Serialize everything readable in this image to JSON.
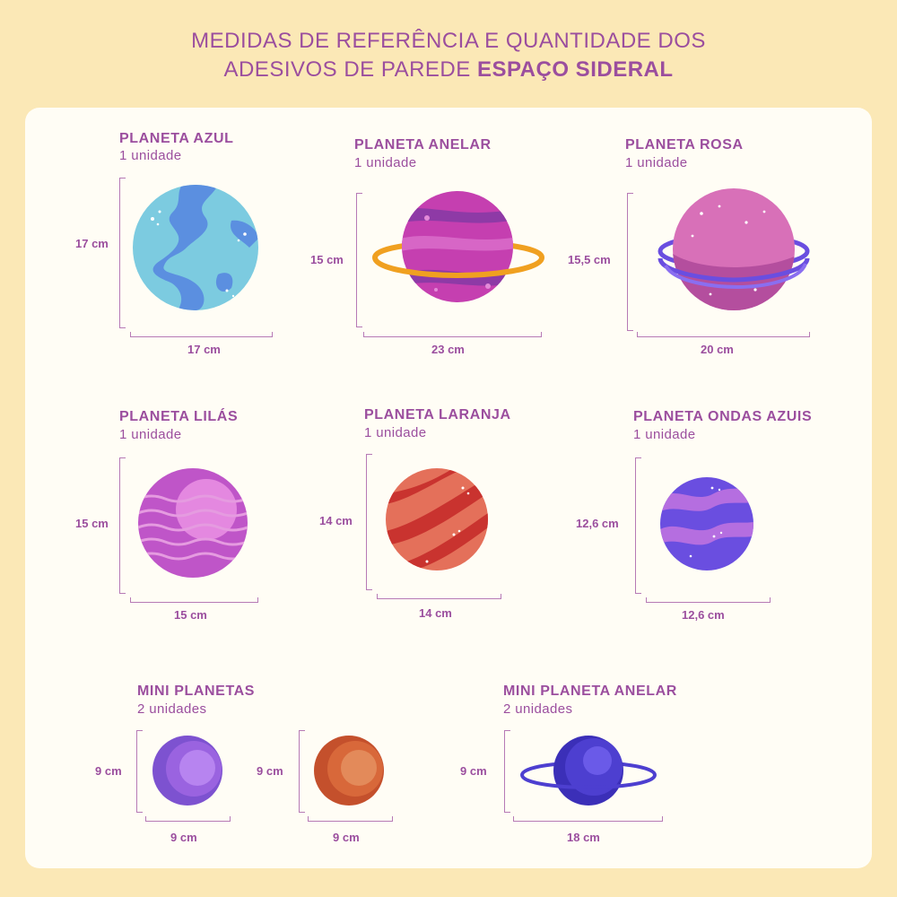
{
  "header": {
    "line1": "MEDIDAS DE REFERÊNCIA E QUANTIDADE DOS",
    "line2_prefix": "ADESIVOS DE PAREDE ",
    "line2_bold": "ESPAÇO SIDERAL"
  },
  "items": {
    "azul": {
      "title": "PLANETA AZUL",
      "qty": "1 unidade",
      "height": "17 cm",
      "width": "17 cm",
      "colors": {
        "base": "#7ccbe0",
        "land": "#5b8fe0"
      }
    },
    "anelar": {
      "title": "PLANETA ANELAR",
      "qty": "1 unidade",
      "height": "15 cm",
      "width": "23 cm",
      "colors": {
        "base": "#c53fb0",
        "band": "#8e3aa6",
        "ring": "#f0a020"
      }
    },
    "rosa": {
      "title": "PLANETA ROSA",
      "qty": "1 unidade",
      "height": "15,5 cm",
      "width": "20 cm",
      "colors": {
        "base": "#d870b8",
        "shade": "#b44e9e",
        "ring": "#6a4ee0"
      }
    },
    "lilas": {
      "title": "PLANETA LILÁS",
      "qty": "1 unidade",
      "height": "15 cm",
      "width": "15 cm",
      "colors": {
        "base": "#bf55c8",
        "wave": "#e59be0"
      }
    },
    "laranja": {
      "title": "PLANETA LARANJA",
      "qty": "1 unidade",
      "height": "14 cm",
      "width": "14 cm",
      "colors": {
        "base": "#e4705a",
        "stripe": "#c9332f"
      }
    },
    "ondas": {
      "title": "PLANETA ONDAS AZUIS",
      "qty": "1 unidade",
      "height": "12,6 cm",
      "width": "12,6 cm",
      "colors": {
        "base": "#6a4ee0",
        "wave": "#b56ee0"
      }
    },
    "mini": {
      "title": "MINI PLANETAS",
      "qty": "2 unidades",
      "height1": "9 cm",
      "width1": "9 cm",
      "height2": "9 cm",
      "width2": "9 cm",
      "colors": {
        "purple": "#9a63e0",
        "orange": "#d8683a"
      }
    },
    "minianel": {
      "title": "MINI PLANETA ANELAR",
      "qty": "2 unidades",
      "height": "9 cm",
      "width": "18 cm",
      "colors": {
        "base": "#4d3fd0",
        "ring": "#4d3fd0"
      }
    }
  }
}
